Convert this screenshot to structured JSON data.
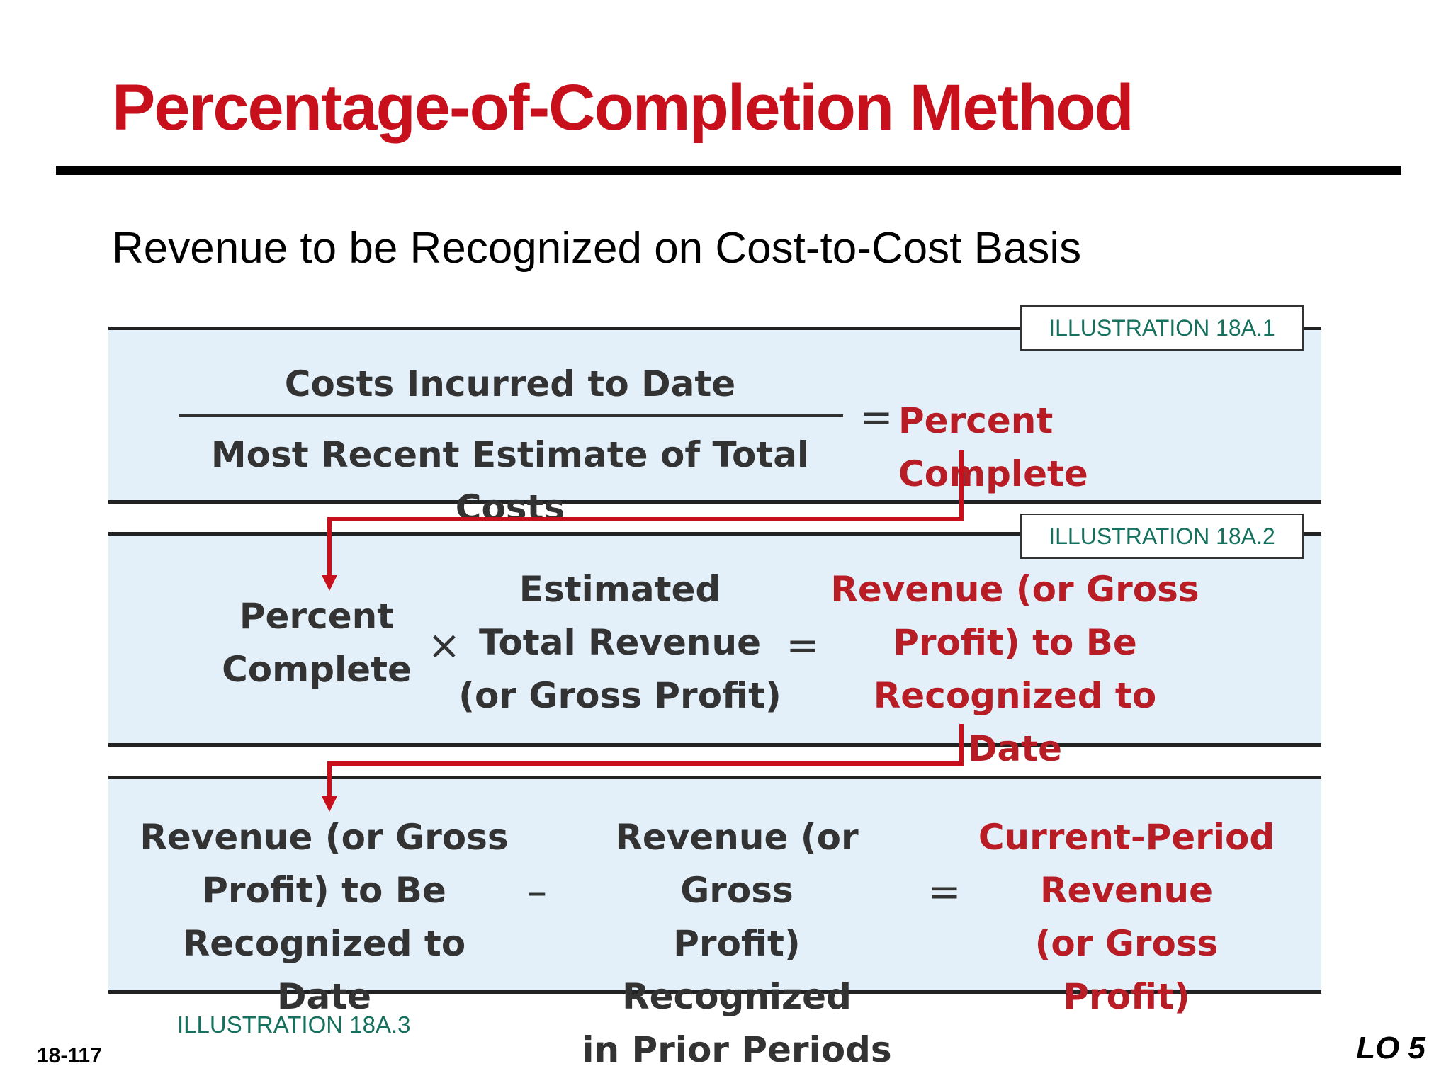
{
  "slide": {
    "title": "Percentage-of-Completion Method",
    "subtitle": "Revenue to be Recognized on Cost-to-Cost Basis",
    "page_number": "18-117",
    "lo": "LO 5"
  },
  "illustrations": {
    "ill1": "ILLUSTRATION 18A.1",
    "ill2": "ILLUSTRATION 18A.2",
    "ill3": "ILLUSTRATION 18A.3"
  },
  "formula1": {
    "numerator": "Costs Incurred to Date",
    "denominator": "Most Recent Estimate of Total Costs",
    "equals": "=",
    "result": "Percent Complete"
  },
  "formula2": {
    "term1_line1": "Percent",
    "term1_line2": "Complete",
    "times": "×",
    "term2_line1": "Estimated",
    "term2_line2": "Total Revenue",
    "term2_line3": "(or Gross Profit)",
    "equals": "=",
    "result_line1": "Revenue (or Gross",
    "result_line2": "Profit) to Be",
    "result_line3": "Recognized to Date"
  },
  "formula3": {
    "term1_line1": "Revenue (or Gross",
    "term1_line2": "Profit) to Be",
    "term1_line3": "Recognized to Date",
    "minus": "–",
    "term2_line1": "Revenue (or Gross",
    "term2_line2": "Profit) Recognized",
    "term2_line3": "in Prior Periods",
    "equals": "=",
    "result_line1": "Current-Period",
    "result_line2": "Revenue",
    "result_line3": "(or Gross Profit)"
  },
  "colors": {
    "title": "#c8101c",
    "result_text": "#b81c25",
    "panel": "#e3f0fa",
    "illustration_label": "#15705e",
    "arrow": "#c8101c"
  }
}
